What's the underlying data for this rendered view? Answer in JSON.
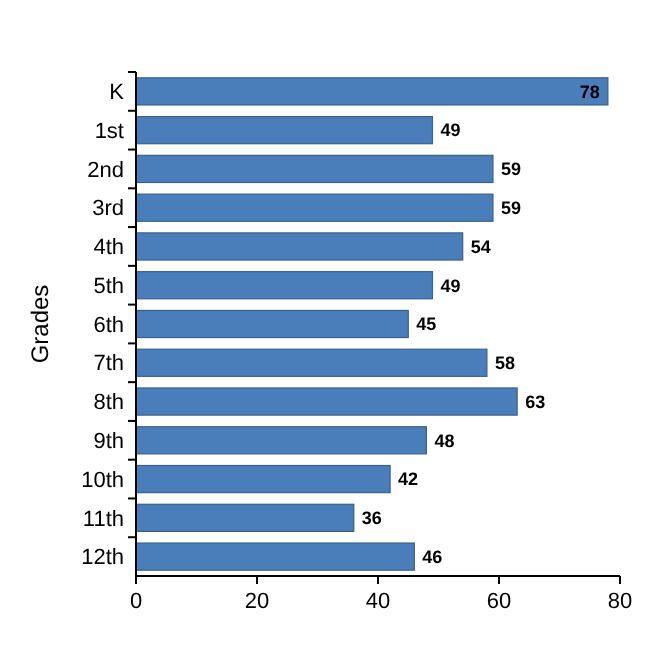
{
  "chart_data": {
    "type": "bar",
    "orientation": "horizontal",
    "ylabel": "Grades",
    "categories": [
      "K",
      "1st",
      "2nd",
      "3rd",
      "4th",
      "5th",
      "6th",
      "7th",
      "8th",
      "9th",
      "10th",
      "11th",
      "12th"
    ],
    "values": [
      78,
      49,
      59,
      59,
      54,
      49,
      45,
      58,
      63,
      48,
      42,
      36,
      46
    ],
    "color": "#4a7ebb",
    "xlim": [
      0,
      80
    ],
    "xticks": [
      0,
      20,
      40,
      60,
      80
    ],
    "data_labels": true,
    "grid": false
  }
}
